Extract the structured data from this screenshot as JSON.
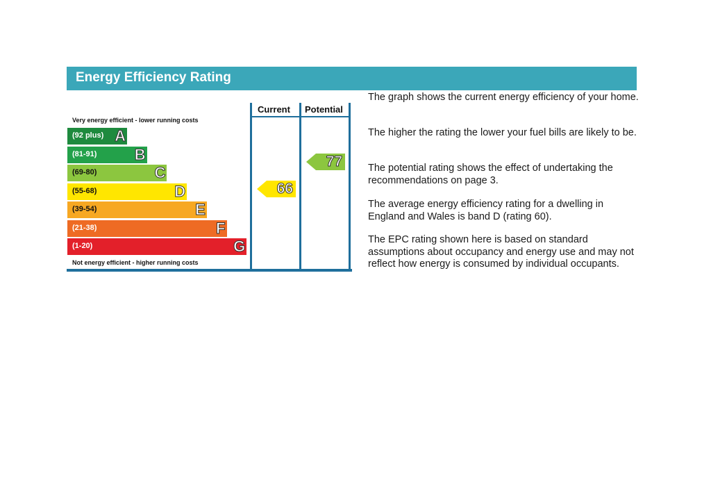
{
  "title": "Energy Efficiency Rating",
  "columns": {
    "current": "Current",
    "potential": "Potential"
  },
  "captions": {
    "top": "Very energy efficient - lower running costs",
    "bottom": "Not energy efficient - higher running costs"
  },
  "bands": [
    {
      "range": "(92 plus)",
      "letter": "A",
      "color": "#1e8a3e"
    },
    {
      "range": "(81-91)",
      "letter": "B",
      "color": "#23a14a"
    },
    {
      "range": "(69-80)",
      "letter": "C",
      "color": "#8cc63f"
    },
    {
      "range": "(55-68)",
      "letter": "D",
      "color": "#ffe600"
    },
    {
      "range": "(39-54)",
      "letter": "E",
      "color": "#f7a823"
    },
    {
      "range": "(21-38)",
      "letter": "F",
      "color": "#ee6b24"
    },
    {
      "range": "(1-20)",
      "letter": "G",
      "color": "#e3202a"
    }
  ],
  "current_rating": {
    "value": "66",
    "band": "D",
    "color": "#ffe600"
  },
  "potential_rating": {
    "value": "77",
    "band": "C",
    "color": "#8cc63f"
  },
  "paragraphs": [
    "The graph shows the current energy efficiency of your home.",
    "The higher the rating the lower your fuel bills are likely to be.",
    "The potential rating shows the effect of undertaking the recommendations on page 3.",
    "The average energy efficiency rating for a dwelling in England and Wales is band D (rating 60).",
    "The EPC rating shown here is based on standard assumptions about occupancy and energy use and may not reflect how energy is consumed by individual occupants."
  ]
}
